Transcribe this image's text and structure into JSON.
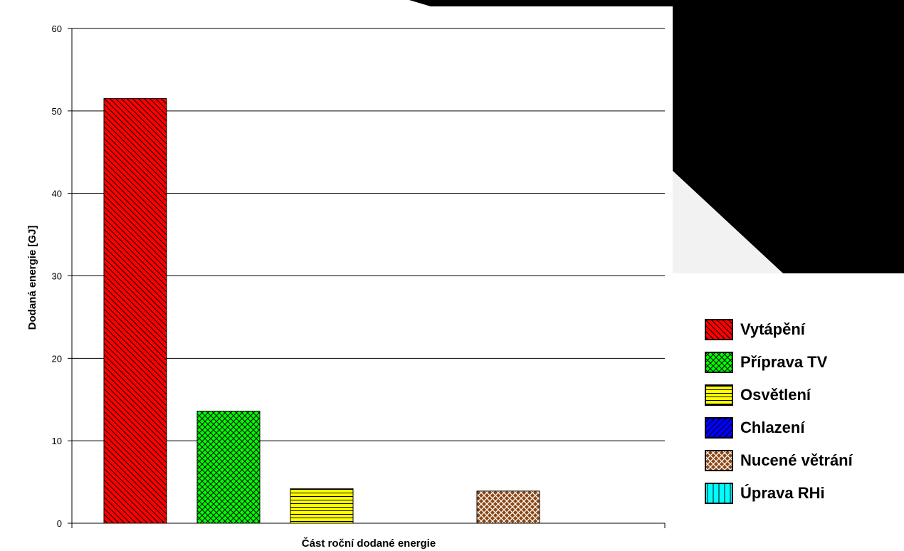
{
  "chart_data": {
    "type": "bar",
    "title": "",
    "xlabel": "Část roční dodané energie",
    "ylabel": "Dodaná energie [GJ]",
    "ylim": [
      0,
      60
    ],
    "yticks": [
      0,
      10,
      20,
      30,
      40,
      50,
      60
    ],
    "grid": true,
    "legend_position": "right",
    "categories": [
      "Vytápění",
      "Příprava TV",
      "Osvětlení",
      "Chlazení",
      "Nucené větrání",
      "Úprava RHi"
    ],
    "values": [
      51.5,
      13.6,
      4.2,
      0,
      3.9,
      0
    ],
    "series": [
      {
        "name": "Vytápění",
        "value": 51.5,
        "color": "#ff0000",
        "pattern": "diagonal-hatch"
      },
      {
        "name": "Příprava TV",
        "value": 13.6,
        "color": "#00ff00",
        "pattern": "cross-hatch"
      },
      {
        "name": "Osvětlení",
        "value": 4.2,
        "color": "#ffff00",
        "pattern": "horizontal-lines"
      },
      {
        "name": "Chlazení",
        "value": 0,
        "color": "#0000ff",
        "pattern": "diagonal-hatch-reverse"
      },
      {
        "name": "Nucené větrání",
        "value": 3.9,
        "color": "#8b4513",
        "pattern": "diamond-hatch"
      },
      {
        "name": "Úprava RHi",
        "value": 0,
        "color": "#00ffff",
        "pattern": "vertical-lines"
      }
    ]
  }
}
